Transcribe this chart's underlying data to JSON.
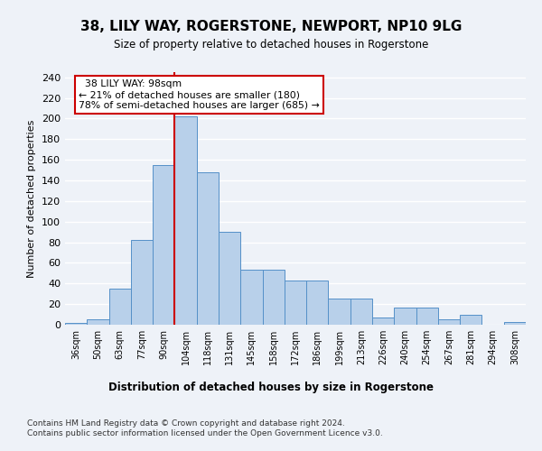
{
  "title": "38, LILY WAY, ROGERSTONE, NEWPORT, NP10 9LG",
  "subtitle": "Size of property relative to detached houses in Rogerstone",
  "xlabel": "Distribution of detached houses by size in Rogerstone",
  "ylabel": "Number of detached properties",
  "footnote1": "Contains HM Land Registry data © Crown copyright and database right 2024.",
  "footnote2": "Contains public sector information licensed under the Open Government Licence v3.0.",
  "bin_labels": [
    "36sqm",
    "50sqm",
    "63sqm",
    "77sqm",
    "90sqm",
    "104sqm",
    "118sqm",
    "131sqm",
    "145sqm",
    "158sqm",
    "172sqm",
    "186sqm",
    "199sqm",
    "213sqm",
    "226sqm",
    "240sqm",
    "254sqm",
    "267sqm",
    "281sqm",
    "294sqm",
    "308sqm"
  ],
  "values": [
    2,
    5,
    35,
    82,
    155,
    202,
    148,
    90,
    53,
    53,
    43,
    43,
    25,
    25,
    7,
    17,
    17,
    5,
    10,
    0,
    3
  ],
  "bar_color": "#b8d0ea",
  "bar_edge_color": "#5590c8",
  "red_line_x": 4.5,
  "red_line_label1": "38 LILY WAY: 98sqm",
  "red_line_label2": "← 21% of detached houses are smaller (180)",
  "red_line_label3": "78% of semi-detached houses are larger (685) →",
  "ylim": [
    0,
    245
  ],
  "yticks": [
    0,
    20,
    40,
    60,
    80,
    100,
    120,
    140,
    160,
    180,
    200,
    220,
    240
  ],
  "background_color": "#eef2f8",
  "grid_color": "#ffffff",
  "annotation_box_color": "#ffffff",
  "annotation_box_edge": "#cc0000",
  "red_line_color": "#cc0000"
}
